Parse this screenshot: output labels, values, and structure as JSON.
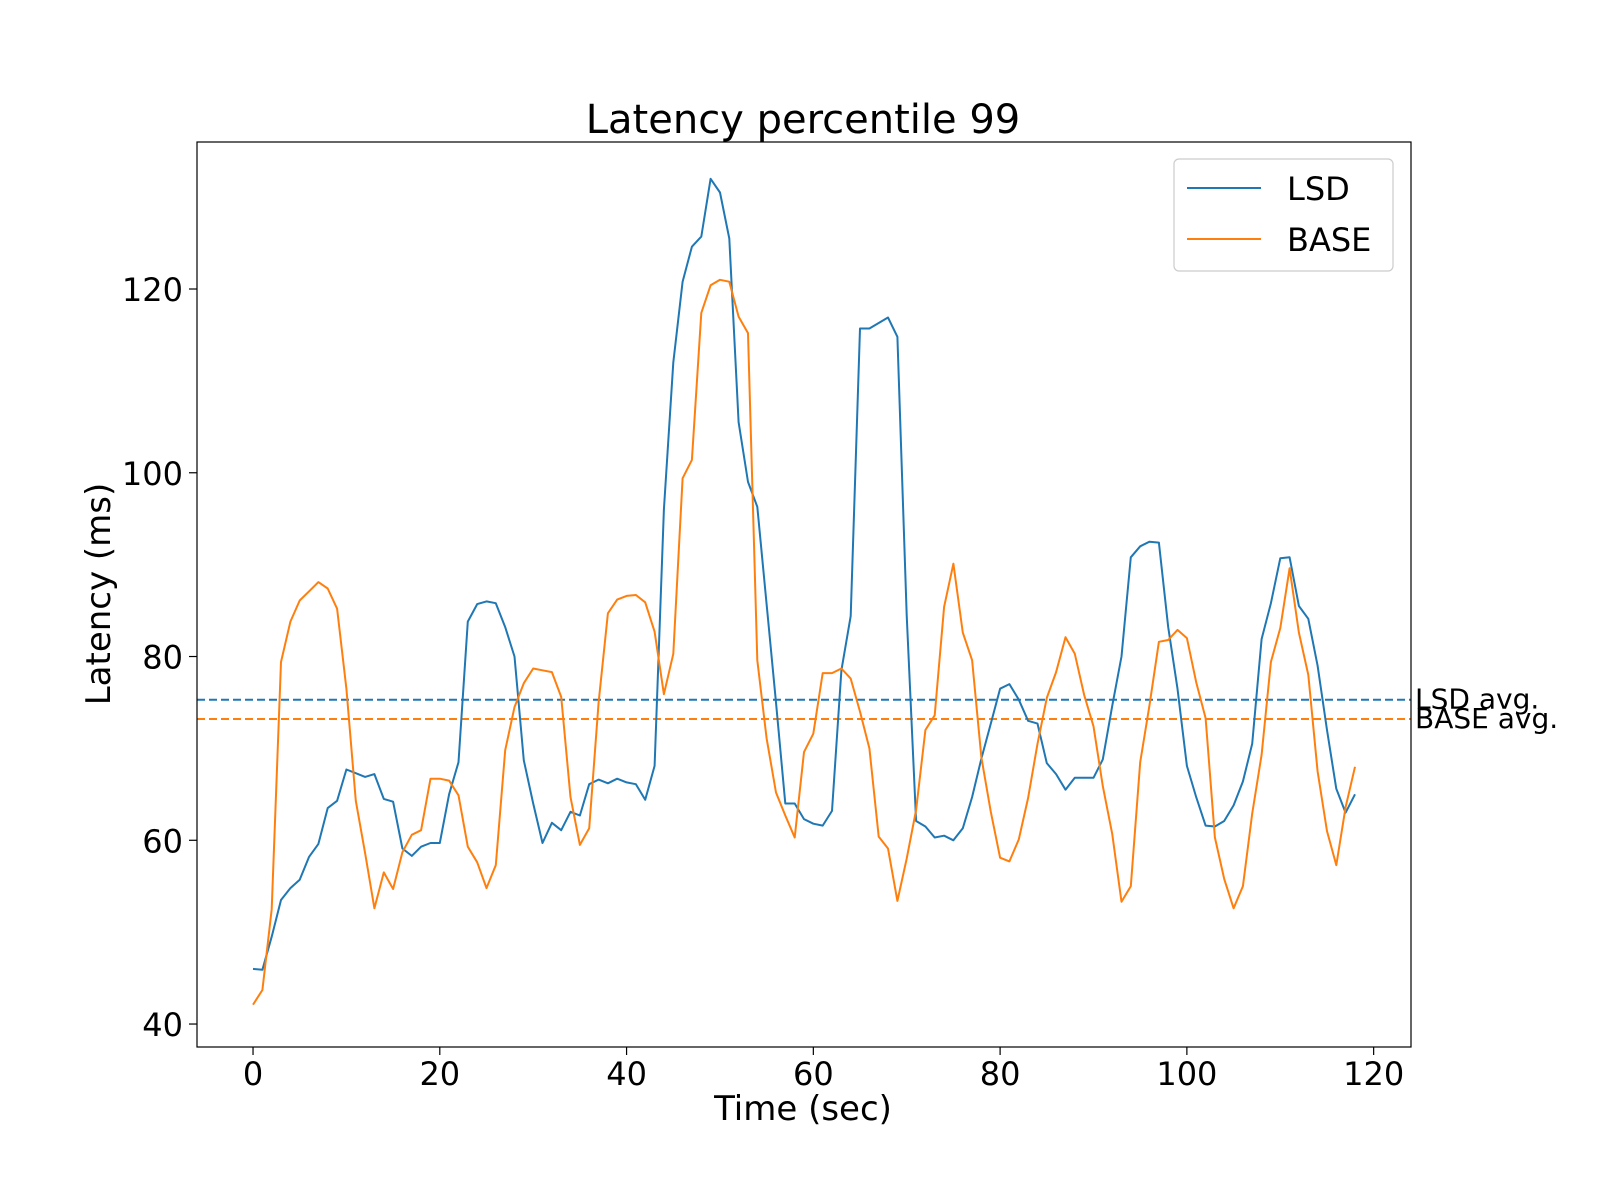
{
  "chart_data": {
    "type": "line",
    "title": "Latency percentile 99",
    "xlabel": "Time (sec)",
    "ylabel": "Latency (ms)",
    "xlim": [
      -6,
      124
    ],
    "ylim": [
      37.5,
      136
    ],
    "xticks": [
      0,
      20,
      40,
      60,
      80,
      100,
      120
    ],
    "yticks": [
      40,
      60,
      80,
      100,
      120
    ],
    "grid": false,
    "legend": "top-right",
    "series": [
      {
        "name": "LSD",
        "color": "#1f77b4",
        "x": [
          0,
          1,
          2,
          3,
          4,
          5,
          6,
          7,
          8,
          9,
          10,
          11,
          12,
          13,
          14,
          15,
          16,
          17,
          18,
          19,
          20,
          21,
          22,
          23,
          24,
          25,
          26,
          27,
          28,
          29,
          30,
          31,
          32,
          33,
          34,
          35,
          36,
          37,
          38,
          39,
          40,
          41,
          42,
          43,
          44,
          45,
          46,
          47,
          48,
          49,
          50,
          51,
          52,
          53,
          54,
          55,
          56,
          57,
          58,
          59,
          60,
          61,
          62,
          63,
          64,
          65,
          66,
          67,
          68,
          69,
          70,
          71,
          72,
          73,
          74,
          75,
          76,
          77,
          78,
          79,
          80,
          81,
          82,
          83,
          84,
          85,
          86,
          87,
          88,
          89,
          90,
          91,
          92,
          93,
          94,
          95,
          96,
          97,
          98,
          99,
          100,
          101,
          102,
          103,
          104,
          105,
          106,
          107,
          108,
          109,
          110,
          111,
          112,
          113,
          114,
          115,
          116,
          117,
          118
        ],
        "values": [
          46,
          45.9,
          49.5,
          53.5,
          54.8,
          55.7,
          58.2,
          59.6,
          63.5,
          64.3,
          67.7,
          67.3,
          66.9,
          67.2,
          64.5,
          64.2,
          59.1,
          58.3,
          59.3,
          59.7,
          59.7,
          65,
          68.5,
          83.8,
          85.7,
          86,
          85.8,
          83.2,
          80,
          68.7,
          64,
          59.7,
          61.9,
          61.1,
          63.1,
          62.7,
          66.1,
          66.6,
          66.2,
          66.7,
          66.3,
          66.1,
          64.4,
          68.1,
          96,
          112,
          120.8,
          124.6,
          125.7,
          132,
          130.5,
          125.5,
          105.5,
          99,
          96.3,
          85.7,
          75,
          64,
          64,
          62.3,
          61.8,
          61.6,
          63.2,
          78.5,
          84.4,
          115.7,
          115.7,
          116.3,
          116.9,
          114.8,
          84.5,
          62.1,
          61.5,
          60.3,
          60.5,
          60,
          61.3,
          64.7,
          68.9,
          72.7,
          76.5,
          77,
          75.3,
          73,
          72.7,
          68.4,
          67.2,
          65.5,
          66.8,
          66.8,
          66.8,
          68.8,
          74.6,
          80,
          90.8,
          92,
          92.5,
          92.4,
          83.2,
          76.5,
          68.1,
          64.7,
          61.6,
          61.5,
          62.1,
          63.8,
          66.4,
          70.5,
          81.9,
          85.8,
          90.7,
          90.8,
          85.5,
          84.1,
          79,
          72,
          65.6,
          63,
          65
        ]
      },
      {
        "name": "BASE",
        "color": "#ff7f0e",
        "x": [
          0,
          1,
          2,
          3,
          4,
          5,
          6,
          7,
          8,
          9,
          10,
          11,
          12,
          13,
          14,
          15,
          16,
          17,
          18,
          19,
          20,
          21,
          22,
          23,
          24,
          25,
          26,
          27,
          28,
          29,
          30,
          31,
          32,
          33,
          34,
          35,
          36,
          37,
          38,
          39,
          40,
          41,
          42,
          43,
          44,
          45,
          46,
          47,
          48,
          49,
          50,
          51,
          52,
          53,
          54,
          55,
          56,
          57,
          58,
          59,
          60,
          61,
          62,
          63,
          64,
          65,
          66,
          67,
          68,
          69,
          70,
          71,
          72,
          73,
          74,
          75,
          76,
          77,
          78,
          79,
          80,
          81,
          82,
          83,
          84,
          85,
          86,
          87,
          88,
          89,
          90,
          91,
          92,
          93,
          94,
          95,
          96,
          97,
          98,
          99,
          100,
          101,
          102,
          103,
          104,
          105,
          106,
          107,
          108,
          109,
          110,
          111,
          112,
          113,
          114,
          115,
          116,
          117,
          118
        ],
        "values": [
          42.1,
          43.7,
          52.5,
          79.4,
          83.8,
          86.1,
          87.1,
          88.1,
          87.4,
          85.2,
          76.5,
          64.3,
          58.6,
          52.6,
          56.5,
          54.7,
          58.7,
          60.6,
          61.1,
          66.7,
          66.7,
          66.5,
          64.9,
          59.3,
          57.6,
          54.8,
          57.3,
          69.8,
          74.5,
          77.1,
          78.7,
          78.5,
          78.3,
          75.6,
          64.7,
          59.5,
          61.3,
          75,
          84.7,
          86.2,
          86.6,
          86.7,
          85.9,
          82.7,
          75.9,
          80.3,
          99.4,
          101.4,
          117.4,
          120.4,
          121,
          120.8,
          117,
          115.2,
          79.6,
          71.1,
          65.2,
          62.7,
          60.3,
          69.6,
          71.6,
          78.2,
          78.2,
          78.7,
          77.6,
          74,
          70,
          60.4,
          59.1,
          53.4,
          58,
          63.3,
          72,
          73.6,
          85.4,
          90.1,
          82.6,
          79.6,
          69,
          63.1,
          58.1,
          57.7,
          60.1,
          64.6,
          70.5,
          75.5,
          78.3,
          82.1,
          80.3,
          75.8,
          72.4,
          65.9,
          60.7,
          53.3,
          55,
          68.5,
          74.7,
          81.6,
          81.8,
          82.9,
          82,
          77.2,
          73.3,
          60.3,
          55.8,
          52.6,
          55,
          62.9,
          69.3,
          79.4,
          83.1,
          89.6,
          82.6,
          78,
          67.5,
          61,
          57.3,
          63.6,
          68
        ]
      }
    ],
    "reference_lines": [
      {
        "label": "LSD avg.",
        "value": 75.3,
        "color": "#1f77b4",
        "style": "dashed"
      },
      {
        "label": "BASE avg.",
        "value": 73.2,
        "color": "#ff7f0e",
        "style": "dashed"
      }
    ]
  }
}
